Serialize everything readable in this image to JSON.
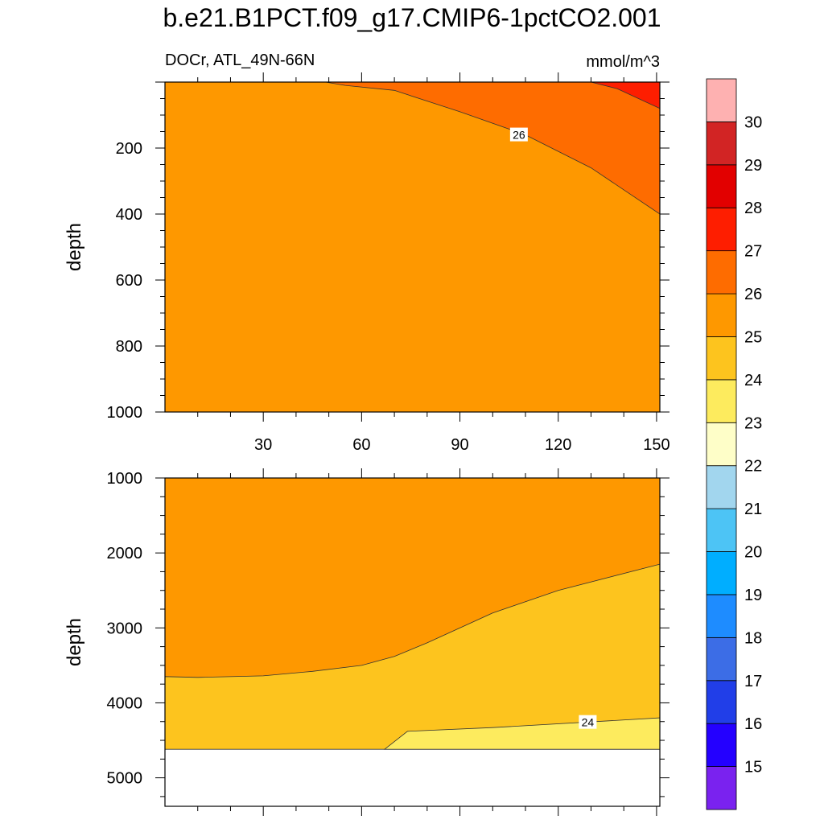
{
  "title": "b.e21.B1PCT.f09_g17.CMIP6-1pctCO2.001",
  "subtitle_left": "DOCr, ATL_49N-66N",
  "subtitle_right": "mmol/m^3",
  "chart_data": [
    {
      "type": "contour",
      "panel": "upper",
      "xlabel": "",
      "ylabel": "depth",
      "xlim": [
        0,
        151
      ],
      "ylim": [
        1000,
        0
      ],
      "xticks": [
        30,
        60,
        90,
        120,
        150
      ],
      "yticks": [
        200,
        400,
        600,
        800,
        1000
      ],
      "background_level": "25-26",
      "regions": [
        {
          "level": "26-27",
          "boundary": [
            [
              49,
              0
            ],
            [
              55,
              10
            ],
            [
              70,
              25
            ],
            [
              90,
              90
            ],
            [
              110,
              160
            ],
            [
              130,
              260
            ],
            [
              151,
              400
            ],
            [
              151,
              0
            ]
          ]
        },
        {
          "level": "27-28",
          "boundary": [
            [
              130,
              0
            ],
            [
              138,
              20
            ],
            [
              151,
              80
            ],
            [
              151,
              0
            ]
          ]
        }
      ],
      "contour_labels": [
        {
          "text": "26",
          "x": 108,
          "y": 160
        }
      ]
    },
    {
      "type": "contour",
      "panel": "lower",
      "xlabel": "",
      "ylabel": "depth",
      "xlim": [
        0,
        151
      ],
      "ylim": [
        5380,
        1000
      ],
      "xticks": [
        30,
        60,
        90,
        120,
        150
      ],
      "yticks": [
        1000,
        2000,
        3000,
        4000,
        5000
      ],
      "background_level": "25-26",
      "regions": [
        {
          "level": "24-25",
          "boundary": [
            [
              0,
              3650
            ],
            [
              10,
              3660
            ],
            [
              30,
              3640
            ],
            [
              45,
              3580
            ],
            [
              60,
              3500
            ],
            [
              70,
              3380
            ],
            [
              80,
              3200
            ],
            [
              100,
              2800
            ],
            [
              120,
              2500
            ],
            [
              151,
              2150
            ],
            [
              151,
              4620
            ],
            [
              0,
              4620
            ]
          ]
        },
        {
          "level": "23-24",
          "boundary": [
            [
              67,
              4620
            ],
            [
              74,
              4380
            ],
            [
              100,
              4330
            ],
            [
              151,
              4200
            ],
            [
              151,
              4620
            ]
          ]
        }
      ],
      "no_data_below": 4620,
      "contour_labels": [
        {
          "text": "24",
          "x": 129,
          "y": 4260
        }
      ]
    }
  ],
  "colorbar": {
    "colors": [
      "#7a22ef",
      "#2400ff",
      "#213ee8",
      "#3c6de6",
      "#1e8cff",
      "#00aeff",
      "#4dc4f5",
      "#a2d6ee",
      "#fefec8",
      "#fdeb5e",
      "#fdc41e",
      "#fe9800",
      "#fe6c00",
      "#fe1e00",
      "#e20000",
      "#d22424",
      "#feb1b1"
    ],
    "labels": [
      "15",
      "16",
      "17",
      "18",
      "19",
      "20",
      "21",
      "22",
      "23",
      "24",
      "25",
      "26",
      "27",
      "28",
      "29",
      "30"
    ]
  },
  "level_colors": {
    "23-24": "#fdeb5e",
    "24-25": "#fdc41e",
    "25-26": "#fe9800",
    "26-27": "#fe6c00",
    "27-28": "#fe1e00"
  }
}
